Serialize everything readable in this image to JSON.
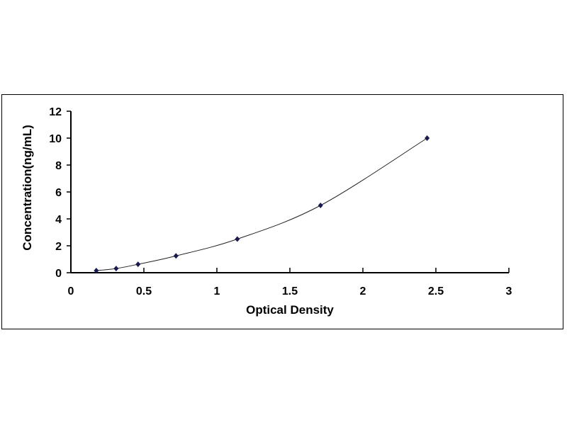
{
  "chart_data": {
    "type": "scatter",
    "xlabel": "Optical Density",
    "ylabel": "Concentration(ng/mL)",
    "xlim": [
      0,
      3
    ],
    "ylim": [
      0,
      12
    ],
    "x_ticks": [
      "0",
      "0.5",
      "1",
      "1.5",
      "2",
      "2.5",
      "3"
    ],
    "y_ticks": [
      "0",
      "2",
      "4",
      "6",
      "8",
      "10",
      "12"
    ],
    "grid": false,
    "trendline": "smooth curve",
    "marker_color": "#1a1a4e",
    "series": [
      {
        "x": [
          0.174,
          0.31,
          0.46,
          0.72,
          1.14,
          1.71,
          2.44
        ],
        "y": [
          0.156,
          0.312,
          0.625,
          1.25,
          2.5,
          5,
          10
        ]
      }
    ]
  }
}
